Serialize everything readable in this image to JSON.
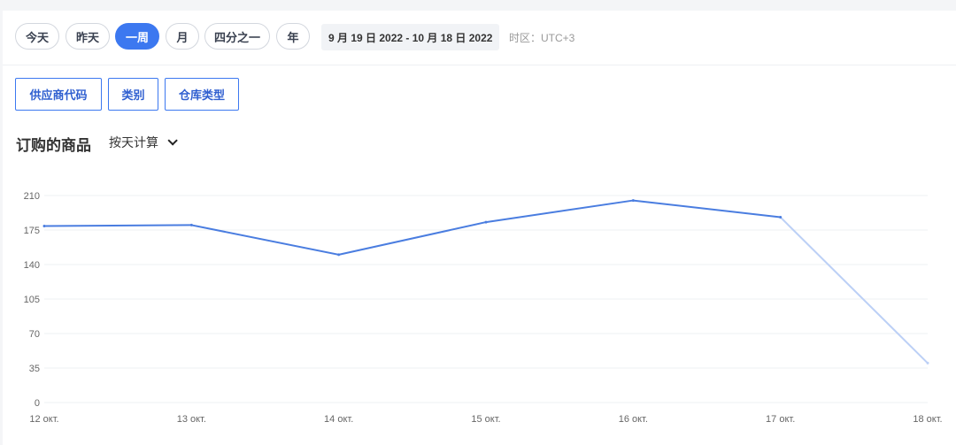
{
  "toolbar": {
    "periods": [
      "今天",
      "昨天",
      "一周",
      "月",
      "四分之一",
      "年"
    ],
    "active_period": "一周",
    "date_range": "9 月 19 日 2022  - 10 月 18 日 2022",
    "timezone": "时区：UTC+3"
  },
  "filters": [
    "供应商代码",
    "类别",
    "仓库类型"
  ],
  "section": {
    "title": "订购的商品",
    "calc_mode": "按天计算"
  },
  "colors": {
    "accent": "#3c78f0",
    "line": "#4a7de0",
    "line_faded": "#bcd0f6"
  },
  "chart_data": {
    "type": "line",
    "categories": [
      "12 окт.",
      "13 окт.",
      "14 окт.",
      "15 окт.",
      "16 окт.",
      "17 окт.",
      "18 окт."
    ],
    "values": [
      179,
      180,
      150,
      183,
      205,
      188,
      40
    ],
    "ylim": [
      0,
      210
    ],
    "yticks": [
      0,
      35,
      70,
      105,
      140,
      175,
      210
    ],
    "grid": true
  }
}
